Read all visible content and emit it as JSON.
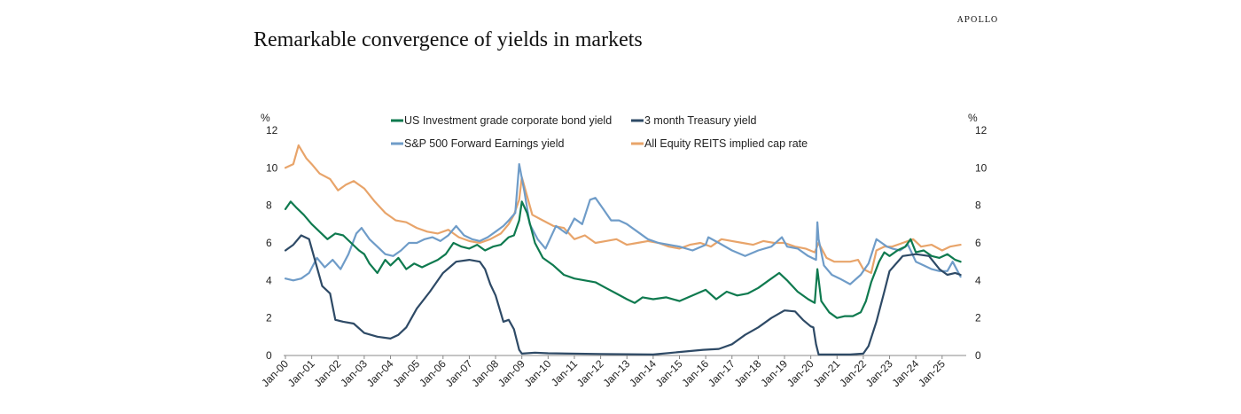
{
  "brand": "APOLLO",
  "page_title": "Remarkable convergence of yields in markets",
  "colors": {
    "ig": "#0f7a4f",
    "tbill": "#2e4a66",
    "spx": "#6f9cc8",
    "reit": "#e8a46a",
    "axis": "#888888",
    "text": "#222222"
  },
  "chart_data": {
    "type": "line",
    "title": "Remarkable convergence of yields in markets",
    "ylabel_left": "%",
    "ylabel_right": "%",
    "ylim": [
      0,
      12
    ],
    "yticks": [
      0,
      2,
      4,
      6,
      8,
      10,
      12
    ],
    "xlim": [
      2000.0,
      2025.85
    ],
    "xtick_labels": [
      "Jan-00",
      "Jan-01",
      "Jan-02",
      "Jan-03",
      "Jan-04",
      "Jan-05",
      "Jan-06",
      "Jan-07",
      "Jan-08",
      "Jan-09",
      "Jan-10",
      "Jan-11",
      "Jan-12",
      "Jan-13",
      "Jan-14",
      "Jan-15",
      "Jan-16",
      "Jan-17",
      "Jan-18",
      "Jan-19",
      "Jan-20",
      "Jan-21",
      "Jan-22",
      "Jan-23",
      "Jan-24",
      "Jan-25"
    ],
    "legend": [
      "US Investment grade corporate bond yield",
      "3 month Treasury yield",
      "S&P 500 Forward Earnings yield",
      "All Equity REITS implied cap rate"
    ],
    "series": [
      {
        "name": "US Investment grade corporate bond yield",
        "color_key": "ig",
        "x": [
          2000.0,
          2000.2,
          2000.4,
          2000.7,
          2001.0,
          2001.3,
          2001.6,
          2001.9,
          2002.2,
          2002.5,
          2002.8,
          2003.0,
          2003.2,
          2003.5,
          2003.8,
          2004.0,
          2004.3,
          2004.6,
          2004.9,
          2005.2,
          2005.5,
          2005.8,
          2006.1,
          2006.4,
          2006.7,
          2007.0,
          2007.3,
          2007.6,
          2007.9,
          2008.2,
          2008.5,
          2008.7,
          2008.9,
          2009.0,
          2009.2,
          2009.5,
          2009.8,
          2010.2,
          2010.6,
          2011.0,
          2011.4,
          2011.8,
          2012.2,
          2012.6,
          2013.0,
          2013.3,
          2013.6,
          2014.0,
          2014.5,
          2015.0,
          2015.5,
          2016.0,
          2016.4,
          2016.8,
          2017.2,
          2017.6,
          2018.0,
          2018.4,
          2018.8,
          2019.1,
          2019.5,
          2019.9,
          2020.15,
          2020.25,
          2020.4,
          2020.7,
          2021.0,
          2021.3,
          2021.6,
          2021.9,
          2022.1,
          2022.3,
          2022.6,
          2022.8,
          2023.0,
          2023.3,
          2023.6,
          2023.8,
          2024.0,
          2024.3,
          2024.6,
          2024.9,
          2025.2,
          2025.5,
          2025.7
        ],
        "values": [
          7.8,
          8.2,
          7.9,
          7.5,
          7.0,
          6.6,
          6.2,
          6.5,
          6.4,
          6.0,
          5.6,
          5.4,
          4.9,
          4.4,
          5.1,
          4.8,
          5.2,
          4.6,
          4.9,
          4.7,
          4.9,
          5.1,
          5.4,
          6.0,
          5.8,
          5.7,
          5.9,
          5.6,
          5.8,
          5.9,
          6.3,
          6.4,
          7.2,
          8.2,
          7.6,
          6.0,
          5.2,
          4.8,
          4.3,
          4.1,
          4.0,
          3.9,
          3.6,
          3.3,
          3.0,
          2.8,
          3.1,
          3.0,
          3.1,
          2.9,
          3.2,
          3.5,
          3.0,
          3.4,
          3.2,
          3.3,
          3.6,
          4.0,
          4.4,
          4.0,
          3.4,
          3.0,
          2.8,
          4.6,
          2.9,
          2.3,
          2.0,
          2.1,
          2.1,
          2.3,
          2.9,
          3.9,
          5.0,
          5.5,
          5.3,
          5.6,
          5.8,
          6.2,
          5.5,
          5.6,
          5.3,
          5.2,
          5.4,
          5.1,
          5.0
        ]
      },
      {
        "name": "3 month Treasury yield",
        "color_key": "tbill",
        "x": [
          2000.0,
          2000.3,
          2000.6,
          2000.9,
          2001.1,
          2001.4,
          2001.7,
          2001.9,
          2002.2,
          2002.6,
          2003.0,
          2003.5,
          2004.0,
          2004.3,
          2004.6,
          2005.0,
          2005.5,
          2006.0,
          2006.5,
          2007.0,
          2007.4,
          2007.6,
          2007.8,
          2008.0,
          2008.3,
          2008.5,
          2008.7,
          2008.9,
          2009.0,
          2009.5,
          2010.0,
          2012.0,
          2014.0,
          2015.9,
          2016.5,
          2017.0,
          2017.5,
          2018.0,
          2018.5,
          2019.0,
          2019.4,
          2019.7,
          2020.0,
          2020.1,
          2020.2,
          2020.3,
          2021.0,
          2021.5,
          2022.0,
          2022.2,
          2022.5,
          2022.8,
          2023.0,
          2023.5,
          2024.0,
          2024.5,
          2024.9,
          2025.2,
          2025.5,
          2025.7
        ],
        "values": [
          5.6,
          5.9,
          6.4,
          6.2,
          5.2,
          3.7,
          3.3,
          1.9,
          1.8,
          1.7,
          1.2,
          1.0,
          0.9,
          1.1,
          1.5,
          2.5,
          3.4,
          4.4,
          5.0,
          5.1,
          5.0,
          4.6,
          3.8,
          3.2,
          1.8,
          1.9,
          1.4,
          0.3,
          0.1,
          0.15,
          0.12,
          0.08,
          0.05,
          0.3,
          0.35,
          0.6,
          1.1,
          1.5,
          2.0,
          2.4,
          2.35,
          1.9,
          1.55,
          1.5,
          0.6,
          0.05,
          0.05,
          0.05,
          0.1,
          0.5,
          1.8,
          3.4,
          4.5,
          5.3,
          5.4,
          5.3,
          4.6,
          4.3,
          4.4,
          4.3
        ]
      },
      {
        "name": "S&P 500 Forward Earnings yield",
        "color_key": "spx",
        "x": [
          2000.0,
          2000.3,
          2000.6,
          2000.9,
          2001.2,
          2001.5,
          2001.8,
          2002.1,
          2002.4,
          2002.7,
          2002.9,
          2003.2,
          2003.5,
          2003.8,
          2004.1,
          2004.4,
          2004.7,
          2005.0,
          2005.3,
          2005.6,
          2005.9,
          2006.2,
          2006.5,
          2006.8,
          2007.1,
          2007.4,
          2007.7,
          2008.0,
          2008.3,
          2008.5,
          2008.75,
          2008.9,
          2009.1,
          2009.3,
          2009.6,
          2009.9,
          2010.3,
          2010.7,
          2011.0,
          2011.3,
          2011.6,
          2011.8,
          2012.1,
          2012.4,
          2012.7,
          2013.0,
          2013.4,
          2013.8,
          2014.2,
          2014.6,
          2015.0,
          2015.5,
          2016.0,
          2016.1,
          2016.5,
          2017.0,
          2017.5,
          2018.0,
          2018.5,
          2018.9,
          2019.1,
          2019.5,
          2019.9,
          2020.2,
          2020.25,
          2020.3,
          2020.5,
          2020.8,
          2021.1,
          2021.5,
          2021.9,
          2022.2,
          2022.5,
          2022.7,
          2022.9,
          2023.1,
          2023.4,
          2023.7,
          2024.0,
          2024.3,
          2024.6,
          2024.9,
          2025.2,
          2025.4,
          2025.7
        ],
        "values": [
          4.1,
          4.0,
          4.1,
          4.4,
          5.2,
          4.7,
          5.1,
          4.6,
          5.4,
          6.5,
          6.8,
          6.2,
          5.8,
          5.4,
          5.3,
          5.6,
          6.0,
          6.0,
          6.2,
          6.3,
          6.1,
          6.4,
          6.9,
          6.4,
          6.2,
          6.1,
          6.3,
          6.6,
          6.9,
          7.2,
          7.6,
          10.2,
          8.7,
          7.0,
          6.2,
          5.7,
          6.9,
          6.5,
          7.3,
          7.0,
          8.3,
          8.4,
          7.8,
          7.2,
          7.2,
          7.0,
          6.6,
          6.2,
          6.0,
          5.9,
          5.8,
          5.6,
          5.9,
          6.3,
          6.0,
          5.6,
          5.3,
          5.6,
          5.8,
          6.3,
          5.8,
          5.7,
          5.3,
          5.1,
          7.1,
          6.2,
          4.8,
          4.3,
          4.1,
          3.8,
          4.3,
          4.9,
          6.2,
          6.0,
          5.8,
          5.7,
          5.6,
          5.9,
          5.0,
          4.8,
          4.6,
          4.5,
          4.5,
          5.0,
          4.2
        ]
      },
      {
        "name": "All Equity REITS implied cap rate",
        "color_key": "reit",
        "x": [
          2000.0,
          2000.3,
          2000.5,
          2000.8,
          2001.0,
          2001.3,
          2001.7,
          2002.0,
          2002.3,
          2002.6,
          2003.0,
          2003.4,
          2003.8,
          2004.2,
          2004.6,
          2005.0,
          2005.4,
          2005.8,
          2006.2,
          2006.6,
          2007.0,
          2007.4,
          2007.8,
          2008.2,
          2008.5,
          2008.7,
          2008.9,
          2009.0,
          2009.4,
          2009.8,
          2010.2,
          2010.6,
          2011.0,
          2011.4,
          2011.8,
          2012.2,
          2012.6,
          2013.0,
          2013.4,
          2013.8,
          2014.2,
          2014.6,
          2015.0,
          2015.4,
          2015.8,
          2016.2,
          2016.6,
          2017.0,
          2017.4,
          2017.8,
          2018.2,
          2018.6,
          2019.0,
          2019.4,
          2019.8,
          2020.15,
          2020.3,
          2020.6,
          2020.9,
          2021.2,
          2021.5,
          2021.8,
          2022.0,
          2022.3,
          2022.5,
          2022.8,
          2023.1,
          2023.5,
          2023.9,
          2024.2,
          2024.6,
          2025.0,
          2025.3,
          2025.7
        ],
        "values": [
          10.0,
          10.2,
          11.2,
          10.5,
          10.2,
          9.7,
          9.4,
          8.8,
          9.1,
          9.3,
          8.9,
          8.2,
          7.6,
          7.2,
          7.1,
          6.8,
          6.6,
          6.5,
          6.7,
          6.3,
          6.1,
          6.0,
          6.2,
          6.5,
          7.0,
          7.5,
          8.3,
          9.5,
          7.5,
          7.2,
          6.9,
          6.8,
          6.2,
          6.4,
          6.0,
          6.1,
          6.2,
          5.9,
          6.0,
          6.1,
          6.0,
          5.8,
          5.7,
          5.9,
          6.0,
          5.8,
          6.2,
          6.1,
          6.0,
          5.9,
          6.1,
          6.0,
          6.0,
          5.8,
          5.7,
          5.5,
          6.0,
          5.2,
          5.0,
          5.0,
          5.0,
          5.1,
          4.6,
          4.4,
          5.6,
          5.8,
          5.8,
          6.0,
          6.2,
          5.8,
          5.9,
          5.6,
          5.8,
          5.9
        ]
      }
    ]
  }
}
